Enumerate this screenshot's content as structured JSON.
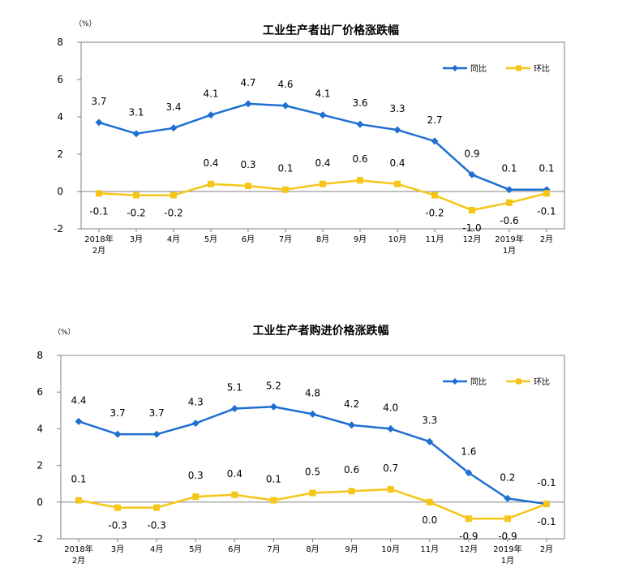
{
  "chart_data": [
    {
      "type": "line",
      "title": "工业生产者出厂价格涨跌幅",
      "ylabel": "（%）",
      "ylim": [
        -2,
        8
      ],
      "yticks": [
        -2,
        0,
        2,
        4,
        6,
        8
      ],
      "categories": [
        "2018年 2月",
        "3月",
        "4月",
        "5月",
        "6月",
        "7月",
        "8月",
        "9月",
        "10月",
        "11月",
        "12月",
        "2019年 1月",
        "2月"
      ],
      "category_lines": [
        [
          "2018年",
          "2月"
        ],
        [
          "3月"
        ],
        [
          "4月"
        ],
        [
          "5月"
        ],
        [
          "6月"
        ],
        [
          "7月"
        ],
        [
          "8月"
        ],
        [
          "9月"
        ],
        [
          "10月"
        ],
        [
          "11月"
        ],
        [
          "12月"
        ],
        [
          "2019年",
          "1月"
        ],
        [
          "2月"
        ]
      ],
      "legend_position": "top-right",
      "series": [
        {
          "name": "同比",
          "color": "#1F6FD1",
          "marker": "diamond",
          "values": [
            3.7,
            3.1,
            3.4,
            4.1,
            4.7,
            4.6,
            4.1,
            3.6,
            3.3,
            2.7,
            0.9,
            0.1,
            0.1
          ],
          "labels": [
            "3.7",
            "3.1",
            "3.4",
            "4.1",
            "4.7",
            "4.6",
            "4.1",
            "3.6",
            "3.3",
            "2.7",
            "0.9",
            "0.1",
            "0.1"
          ]
        },
        {
          "name": "环比",
          "color": "#F5C518",
          "marker": "square",
          "values": [
            -0.1,
            -0.2,
            -0.2,
            0.4,
            0.3,
            0.1,
            0.4,
            0.6,
            0.4,
            -0.2,
            -1.0,
            -0.6,
            -0.1
          ],
          "labels": [
            "-0.1",
            "-0.2",
            "-0.2",
            "0.4",
            "0.3",
            "0.1",
            "0.4",
            "0.6",
            "0.4",
            "-0.2",
            "-1.0",
            "-0.6",
            "-0.1"
          ]
        }
      ]
    },
    {
      "type": "line",
      "title": "工业生产者购进价格涨跌幅",
      "ylabel": "（%）",
      "ylim": [
        -2,
        8
      ],
      "yticks": [
        -2,
        0,
        2,
        4,
        6,
        8
      ],
      "categories": [
        "2018年 2月",
        "3月",
        "4月",
        "5月",
        "6月",
        "7月",
        "8月",
        "9月",
        "10月",
        "11月",
        "12月",
        "2019年 1月",
        "2月"
      ],
      "category_lines": [
        [
          "2018年",
          "2月"
        ],
        [
          "3月"
        ],
        [
          "4月"
        ],
        [
          "5月"
        ],
        [
          "6月"
        ],
        [
          "7月"
        ],
        [
          "8月"
        ],
        [
          "9月"
        ],
        [
          "10月"
        ],
        [
          "11月"
        ],
        [
          "12月"
        ],
        [
          "2019年",
          "1月"
        ],
        [
          "2月"
        ]
      ],
      "legend_position": "top-right",
      "series": [
        {
          "name": "同比",
          "color": "#1F6FD1",
          "marker": "diamond",
          "values": [
            4.4,
            3.7,
            3.7,
            4.3,
            5.1,
            5.2,
            4.8,
            4.2,
            4.0,
            3.3,
            1.6,
            0.2,
            -0.1
          ],
          "labels": [
            "4.4",
            "3.7",
            "3.7",
            "4.3",
            "5.1",
            "5.2",
            "4.8",
            "4.2",
            "4.0",
            "3.3",
            "1.6",
            "0.2",
            "-0.1"
          ]
        },
        {
          "name": "环比",
          "color": "#F5C518",
          "marker": "square",
          "values": [
            0.1,
            -0.3,
            -0.3,
            0.3,
            0.4,
            0.1,
            0.5,
            0.6,
            0.7,
            0.0,
            -0.9,
            -0.9,
            -0.1
          ],
          "labels": [
            "0.1",
            "-0.3",
            "-0.3",
            "0.3",
            "0.4",
            "0.1",
            "0.5",
            "0.6",
            "0.7",
            "0.0",
            "-0.9",
            "-0.9",
            "-0.1"
          ]
        }
      ]
    }
  ]
}
